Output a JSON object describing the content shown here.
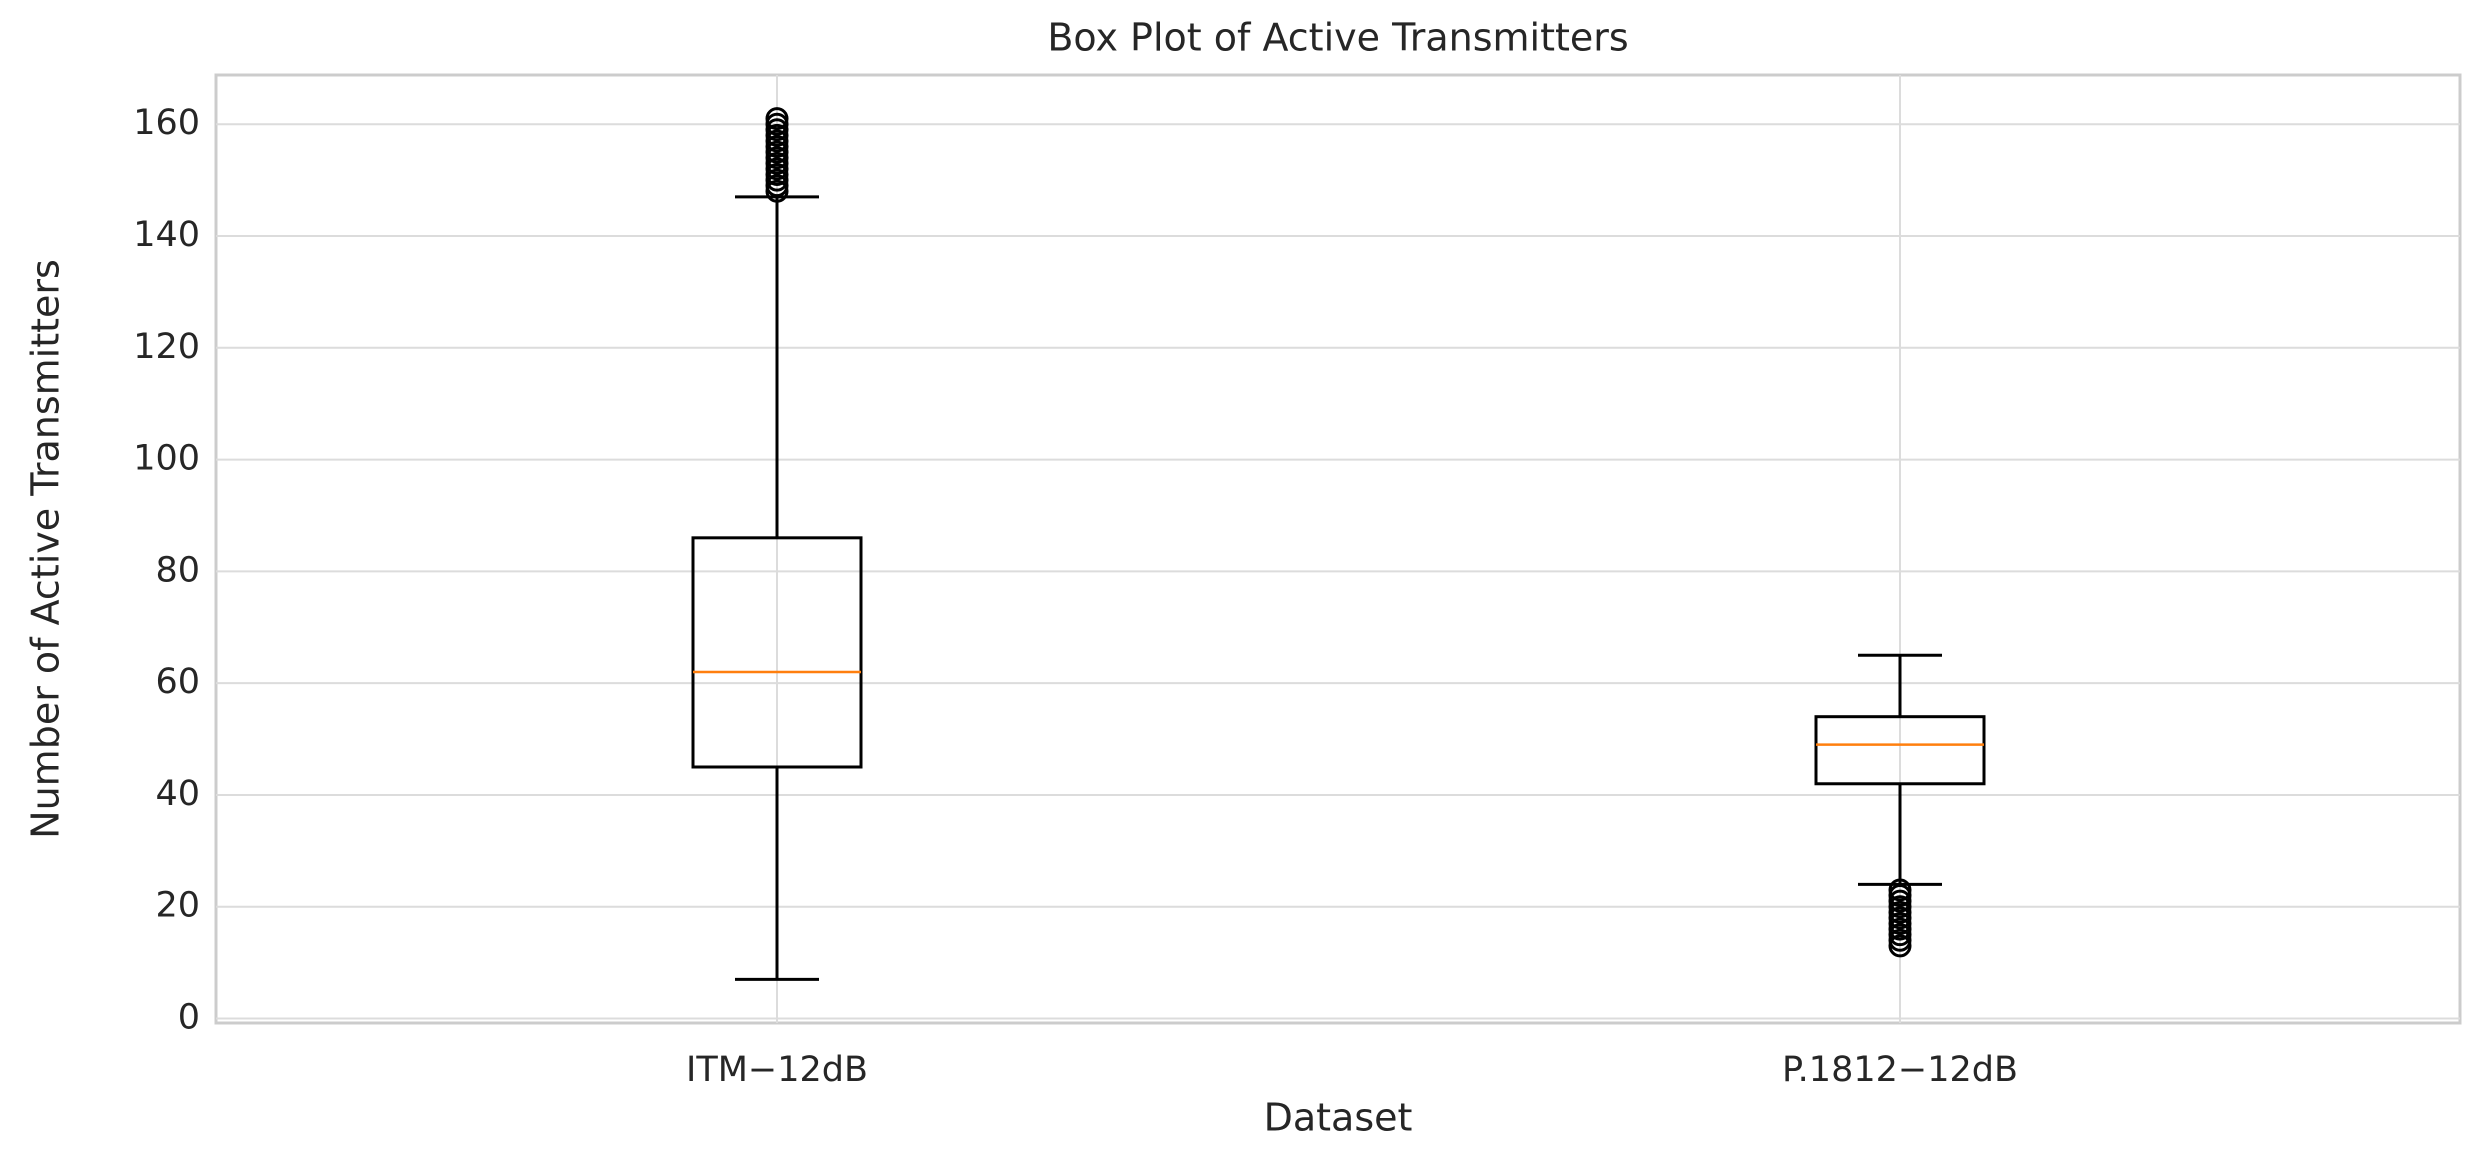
{
  "chart_data": {
    "type": "box",
    "title": "Box Plot of Active Transmitters",
    "x_label": "Dataset",
    "y_label": "Number of Active Transmitters",
    "categories": [
      "ITM−12dB",
      "P.1812−12dB"
    ],
    "boxes": [
      {
        "whislo": 7,
        "q1": 45,
        "med": 62,
        "q3": 86,
        "whishi": 147,
        "fliers": [
          148,
          149,
          150,
          151,
          152,
          153,
          154,
          155,
          156,
          157,
          158,
          159,
          160,
          161
        ]
      },
      {
        "whislo": 24,
        "q1": 42,
        "med": 49,
        "q3": 54,
        "whishi": 65,
        "fliers": [
          13,
          14,
          15,
          16,
          17,
          18,
          19,
          20,
          21,
          22,
          23
        ]
      }
    ],
    "box_color": "#000000",
    "median_color": "#ff7f0e",
    "ylim": [
      -0.8,
      168.8
    ],
    "yticks": [
      0,
      20,
      40,
      60,
      80,
      100,
      120,
      140,
      160
    ],
    "grid": true
  }
}
